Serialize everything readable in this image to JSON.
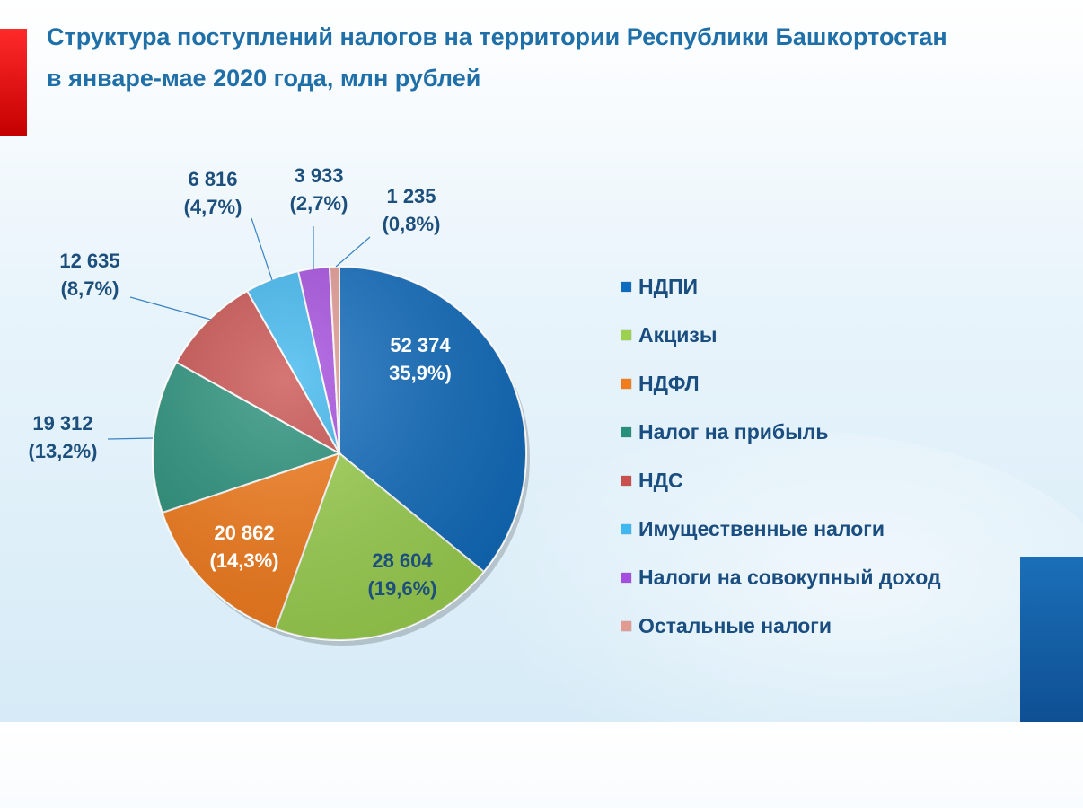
{
  "title": {
    "line1": "Структура поступлений налогов на территории Республики Башкортостан",
    "line2": "в январе-мае 2020 года, млн рублей"
  },
  "chart_data": {
    "type": "pie",
    "title": "Структура поступлений налогов на территории Республики Башкортостан в январе-мае 2020 года, млн рублей",
    "unit": "млн рублей",
    "legend_position": "right",
    "slices": [
      {
        "name": "НДПИ",
        "value": 52374,
        "value_label": "52 374",
        "percent_label": "35,9%)",
        "color": "#0f6bbd"
      },
      {
        "name": "Акцизы",
        "value": 28604,
        "value_label": "28 604",
        "percent_label": "(19,6%)",
        "color": "#9bd14f"
      },
      {
        "name": "НДФЛ",
        "value": 20862,
        "value_label": "20 862",
        "percent_label": "(14,3%)",
        "color": "#f47b1a"
      },
      {
        "name": "Налог на прибыль",
        "value": 19312,
        "value_label": "19 312",
        "percent_label": "(13,2%)",
        "color": "#27907a"
      },
      {
        "name": "НДС",
        "value": 12635,
        "value_label": "12 635",
        "percent_label": "(8,7%)",
        "color": "#c9504e"
      },
      {
        "name": "Имущественные налоги",
        "value": 6816,
        "value_label": "6 816",
        "percent_label": "(4,7%)",
        "color": "#3fb8f0"
      },
      {
        "name": "Налоги на совокупный доход",
        "value": 3933,
        "value_label": "3 933",
        "percent_label": "(2,7%)",
        "color": "#a64de0"
      },
      {
        "name": "Остальные налоги",
        "value": 1235,
        "value_label": "1 235",
        "percent_label": "(0,8%)",
        "color": "#e39a92"
      }
    ]
  }
}
